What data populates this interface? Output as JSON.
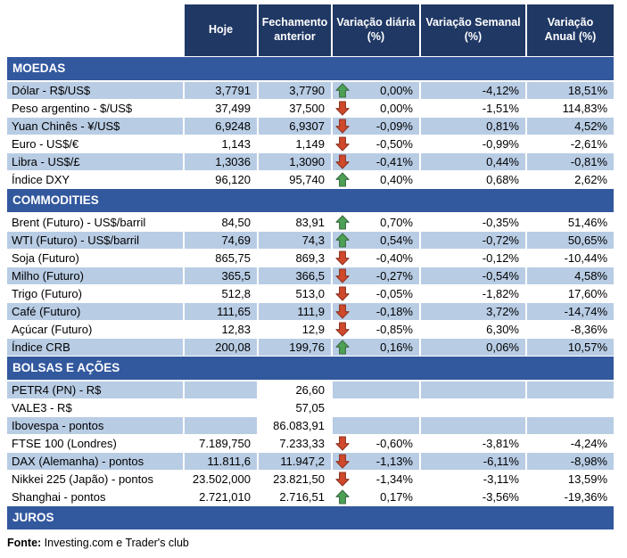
{
  "header": {
    "columns": [
      "Hoje",
      "Fechamento anterior",
      "Variação diária (%)",
      "Variação Semanal (%)",
      "Variação Anual (%)"
    ]
  },
  "colors": {
    "header_bg": "#203864",
    "section_bg": "#32589E",
    "row_shade": "#B8CCE4",
    "arrow_up_fill": "#4CA154",
    "arrow_up_stroke": "#3D6B44",
    "arrow_down_fill": "#D0492B",
    "arrow_down_stroke": "#8C3424"
  },
  "sections": [
    {
      "title": "MOEDAS",
      "rows": [
        {
          "label": "Dólar - R$/US$",
          "hoje": "3,7791",
          "fech": "3,7790",
          "arrow": "up",
          "vd": "0,00%",
          "vs": "-4,12%",
          "va": "18,51%",
          "shaded": true
        },
        {
          "label": "Peso argentino - $/US$",
          "hoje": "37,499",
          "fech": "37,500",
          "arrow": "down",
          "vd": "0,00%",
          "vs": "-1,51%",
          "va": "114,83%",
          "shaded": false
        },
        {
          "label": "Yuan Chinês - ¥/US$",
          "hoje": "6,9248",
          "fech": "6,9307",
          "arrow": "down",
          "vd": "-0,09%",
          "vs": "0,81%",
          "va": "4,52%",
          "shaded": true
        },
        {
          "label": "Euro - US$/€",
          "hoje": "1,143",
          "fech": "1,149",
          "arrow": "down",
          "vd": "-0,50%",
          "vs": "-0,99%",
          "va": "-2,61%",
          "shaded": false
        },
        {
          "label": "Libra - US$/£",
          "hoje": "1,3036",
          "fech": "1,3090",
          "arrow": "down",
          "vd": "-0,41%",
          "vs": "0,44%",
          "va": "-0,81%",
          "shaded": true
        },
        {
          "label": "Índice DXY",
          "hoje": "96,120",
          "fech": "95,740",
          "arrow": "up",
          "vd": "0,40%",
          "vs": "0,68%",
          "va": "2,62%",
          "shaded": false
        }
      ]
    },
    {
      "title": "COMMODITIES",
      "rows": [
        {
          "label": "Brent (Futuro) - US$/barril",
          "hoje": "84,50",
          "fech": "83,91",
          "arrow": "up",
          "vd": "0,70%",
          "vs": "-0,35%",
          "va": "51,46%",
          "shaded": false
        },
        {
          "label": "WTI (Futuro) - US$/barril",
          "hoje": "74,69",
          "fech": "74,3",
          "arrow": "up",
          "vd": "0,54%",
          "vs": "-0,72%",
          "va": "50,65%",
          "shaded": true
        },
        {
          "label": "Soja (Futuro)",
          "hoje": "865,75",
          "fech": "869,3",
          "arrow": "down",
          "vd": "-0,40%",
          "vs": "-0,12%",
          "va": "-10,44%",
          "shaded": false
        },
        {
          "label": "Milho (Futuro)",
          "hoje": "365,5",
          "fech": "366,5",
          "arrow": "down",
          "vd": "-0,27%",
          "vs": "-0,54%",
          "va": "4,58%",
          "shaded": true
        },
        {
          "label": "Trigo (Futuro)",
          "hoje": "512,8",
          "fech": "513,0",
          "arrow": "down",
          "vd": "-0,05%",
          "vs": "-1,82%",
          "va": "17,60%",
          "shaded": false
        },
        {
          "label": "Café (Futuro)",
          "hoje": "111,65",
          "fech": "111,9",
          "arrow": "down",
          "vd": "-0,18%",
          "vs": "3,72%",
          "va": "-14,74%",
          "shaded": true
        },
        {
          "label": "Açúcar (Futuro)",
          "hoje": "12,83",
          "fech": "12,9",
          "arrow": "down",
          "vd": "-0,85%",
          "vs": "6,30%",
          "va": "-8,36%",
          "shaded": false
        },
        {
          "label": "Índice CRB",
          "hoje": "200,08",
          "fech": "199,76",
          "arrow": "up",
          "vd": "0,16%",
          "vs": "0,06%",
          "va": "10,57%",
          "shaded": true
        }
      ]
    },
    {
      "title": "BOLSAS E AÇÕES",
      "rows": [
        {
          "label": "PETR4 (PN) - R$",
          "hoje": "",
          "fech": "26,60",
          "arrow": "",
          "vd": "",
          "vs": "",
          "va": "",
          "shaded": true,
          "fech_white": true
        },
        {
          "label": "VALE3 - R$",
          "hoje": "",
          "fech": "57,05",
          "arrow": "",
          "vd": "",
          "vs": "",
          "va": "",
          "shaded": false
        },
        {
          "label": "Ibovespa - pontos",
          "hoje": "",
          "fech": "86.083,91",
          "arrow": "",
          "vd": "",
          "vs": "",
          "va": "",
          "shaded": true,
          "fech_white": true
        },
        {
          "label": "FTSE 100 (Londres)",
          "hoje": "7.189,750",
          "fech": "7.233,33",
          "arrow": "down",
          "vd": "-0,60%",
          "vs": "-3,81%",
          "va": "-4,24%",
          "shaded": false
        },
        {
          "label": "DAX (Alemanha) - pontos",
          "hoje": "11.811,6",
          "fech": "11.947,2",
          "arrow": "down",
          "vd": "-1,13%",
          "vs": "-6,11%",
          "va": "-8,98%",
          "shaded": true
        },
        {
          "label": "Nikkei 225 (Japão) - pontos",
          "hoje": "23.502,000",
          "fech": "23.821,50",
          "arrow": "down",
          "vd": "-1,34%",
          "vs": "-3,11%",
          "va": "13,59%",
          "shaded": false
        },
        {
          "label": "Shanghai - pontos",
          "hoje": "2.721,010",
          "fech": "2.716,51",
          "arrow": "up",
          "vd": "0,17%",
          "vs": "-3,56%",
          "va": "-19,36%",
          "shaded": false
        }
      ]
    },
    {
      "title": "JUROS",
      "rows": []
    }
  ],
  "footer": {
    "source_label": "Fonte:",
    "source_text": " Investing.com e Trader's club"
  }
}
